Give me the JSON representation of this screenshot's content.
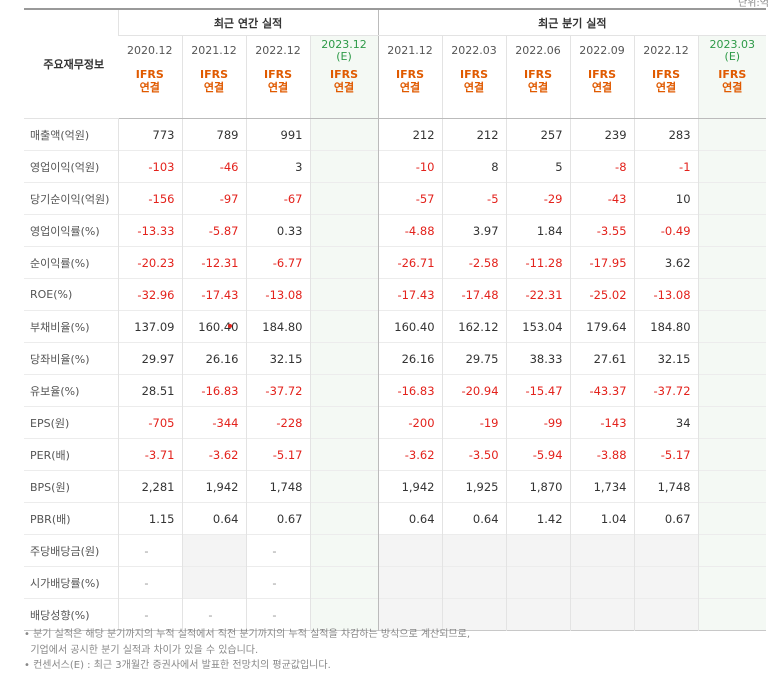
{
  "unit_label": "단위:억",
  "header": {
    "corner": "주요재무정보",
    "annual_title": "최근 연간 실적",
    "quarter_title": "최근 분기 실적",
    "annual_periods": [
      {
        "date": "2020.12",
        "est": "",
        "basis": [
          "IFRS",
          "연결"
        ]
      },
      {
        "date": "2021.12",
        "est": "",
        "basis": [
          "IFRS",
          "연결"
        ]
      },
      {
        "date": "2022.12",
        "est": "",
        "basis": [
          "IFRS",
          "연결"
        ]
      },
      {
        "date": "2023.12",
        "est": "(E)",
        "basis": [
          "IFRS",
          "연결"
        ]
      }
    ],
    "quarter_periods": [
      {
        "date": "2021.12",
        "est": "",
        "basis": [
          "IFRS",
          "연결"
        ]
      },
      {
        "date": "2022.03",
        "est": "",
        "basis": [
          "IFRS",
          "연결"
        ]
      },
      {
        "date": "2022.06",
        "est": "",
        "basis": [
          "IFRS",
          "연결"
        ]
      },
      {
        "date": "2022.09",
        "est": "",
        "basis": [
          "IFRS",
          "연결"
        ]
      },
      {
        "date": "2022.12",
        "est": "",
        "basis": [
          "IFRS",
          "연결"
        ]
      },
      {
        "date": "2023.03",
        "est": "(E)",
        "basis": [
          "IFRS",
          "연결"
        ]
      }
    ]
  },
  "rows": [
    {
      "label": "매출액(억원)",
      "group": true,
      "annual": [
        "773",
        "789",
        "991",
        ""
      ],
      "quarter": [
        "212",
        "212",
        "257",
        "239",
        "283",
        ""
      ]
    },
    {
      "label": "영업이익(억원)",
      "group": false,
      "annual": [
        "-103",
        "-46",
        "3",
        ""
      ],
      "quarter": [
        "-10",
        "8",
        "5",
        "-8",
        "-1",
        ""
      ]
    },
    {
      "label": "당기순이익(억원)",
      "group": false,
      "annual": [
        "-156",
        "-97",
        "-67",
        ""
      ],
      "quarter": [
        "-57",
        "-5",
        "-29",
        "-43",
        "10",
        ""
      ]
    },
    {
      "label": "영업이익률(%)",
      "group": true,
      "annual": [
        "-13.33",
        "-5.87",
        "0.33",
        ""
      ],
      "quarter": [
        "-4.88",
        "3.97",
        "1.84",
        "-3.55",
        "-0.49",
        ""
      ]
    },
    {
      "label": "순이익률(%)",
      "group": false,
      "annual": [
        "-20.23",
        "-12.31",
        "-6.77",
        ""
      ],
      "quarter": [
        "-26.71",
        "-2.58",
        "-11.28",
        "-17.95",
        "3.62",
        ""
      ]
    },
    {
      "label": "ROE(%)",
      "group": false,
      "annual": [
        "-32.96",
        "-17.43",
        "-13.08",
        ""
      ],
      "quarter": [
        "-17.43",
        "-17.48",
        "-22.31",
        "-25.02",
        "-13.08",
        ""
      ]
    },
    {
      "label": "부채비율(%)",
      "group": true,
      "annual": [
        "137.09",
        "160.40",
        "184.80",
        ""
      ],
      "quarter": [
        "160.40",
        "162.12",
        "153.04",
        "179.64",
        "184.80",
        ""
      ]
    },
    {
      "label": "당좌비율(%)",
      "group": false,
      "annual": [
        "29.97",
        "26.16",
        "32.15",
        ""
      ],
      "quarter": [
        "26.16",
        "29.75",
        "38.33",
        "27.61",
        "32.15",
        ""
      ]
    },
    {
      "label": "유보율(%)",
      "group": false,
      "annual": [
        "28.51",
        "-16.83",
        "-37.72",
        ""
      ],
      "quarter": [
        "-16.83",
        "-20.94",
        "-15.47",
        "-43.37",
        "-37.72",
        ""
      ]
    },
    {
      "label": "EPS(원)",
      "group": true,
      "annual": [
        "-705",
        "-344",
        "-228",
        ""
      ],
      "quarter": [
        "-200",
        "-19",
        "-99",
        "-143",
        "34",
        ""
      ]
    },
    {
      "label": "PER(배)",
      "group": false,
      "annual": [
        "-3.71",
        "-3.62",
        "-5.17",
        ""
      ],
      "quarter": [
        "-3.62",
        "-3.50",
        "-5.94",
        "-3.88",
        "-5.17",
        ""
      ]
    },
    {
      "label": "BPS(원)",
      "group": false,
      "annual": [
        "2,281",
        "1,942",
        "1,748",
        ""
      ],
      "quarter": [
        "1,942",
        "1,925",
        "1,870",
        "1,734",
        "1,748",
        ""
      ]
    },
    {
      "label": "PBR(배)",
      "group": false,
      "annual": [
        "1.15",
        "0.64",
        "0.67",
        ""
      ],
      "quarter": [
        "0.64",
        "0.64",
        "1.42",
        "1.04",
        "0.67",
        ""
      ]
    },
    {
      "label": "주당배당금(원)",
      "group": true,
      "annual": [
        "-",
        "",
        "-",
        ""
      ],
      "quarter": [
        "",
        "",
        "",
        "",
        "",
        ""
      ]
    },
    {
      "label": "시가배당률(%)",
      "group": false,
      "annual": [
        "-",
        "",
        "-",
        ""
      ],
      "quarter": [
        "",
        "",
        "",
        "",
        "",
        ""
      ]
    },
    {
      "label": "배당성향(%)",
      "group": false,
      "annual": [
        "-",
        "-",
        "-",
        ""
      ],
      "quarter": [
        "",
        "",
        "",
        "",
        "",
        ""
      ]
    }
  ],
  "notes": [
    "• 분기 실적은 해당 분기까지의 누적 실적에서 직전 분기까지의 누적 실적을 차감하는 방식으로 계산되므로,",
    "  기업에서 공시한 분기 실적과 차이가 있을 수 있습니다.",
    "• 컨센서스(E) : 최근 3개월간 증권사에서 발표한 전망치의 평균값입니다."
  ],
  "colors": {
    "negative": "#e3221c",
    "ifrs": "#e05a00",
    "estimate": "#2d9a47"
  }
}
